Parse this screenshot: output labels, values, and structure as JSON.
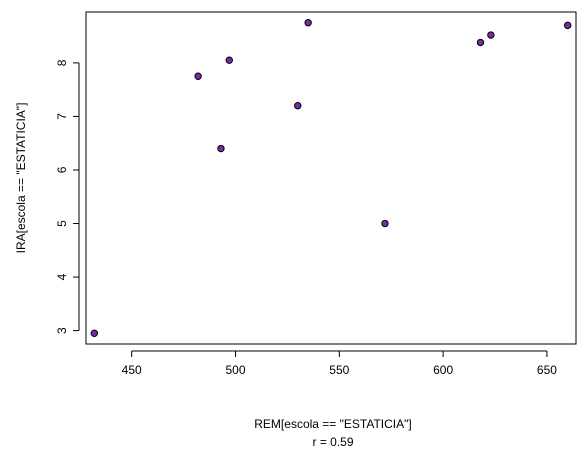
{
  "chart_data": {
    "type": "scatter",
    "xlabel": "REM[escola == \"ESTATICIA\"]",
    "subtitle": "r = 0.59",
    "ylabel": "IRA[escola == \"ESTATICIA\"]",
    "xlim": [
      428,
      664
    ],
    "ylim": [
      2.75,
      8.95
    ],
    "x_ticks": [
      450,
      500,
      550,
      600,
      650
    ],
    "y_ticks": [
      3,
      4,
      5,
      6,
      7,
      8
    ],
    "grid": false,
    "point_color": "#7b2aa5",
    "point_outline": "#000000",
    "points": [
      {
        "x": 432,
        "y": 2.95
      },
      {
        "x": 482,
        "y": 7.75
      },
      {
        "x": 493,
        "y": 6.4
      },
      {
        "x": 497,
        "y": 8.05
      },
      {
        "x": 530,
        "y": 7.2
      },
      {
        "x": 535,
        "y": 8.75
      },
      {
        "x": 572,
        "y": 5.0
      },
      {
        "x": 618,
        "y": 8.38
      },
      {
        "x": 623,
        "y": 8.52
      },
      {
        "x": 660,
        "y": 8.7
      }
    ]
  }
}
